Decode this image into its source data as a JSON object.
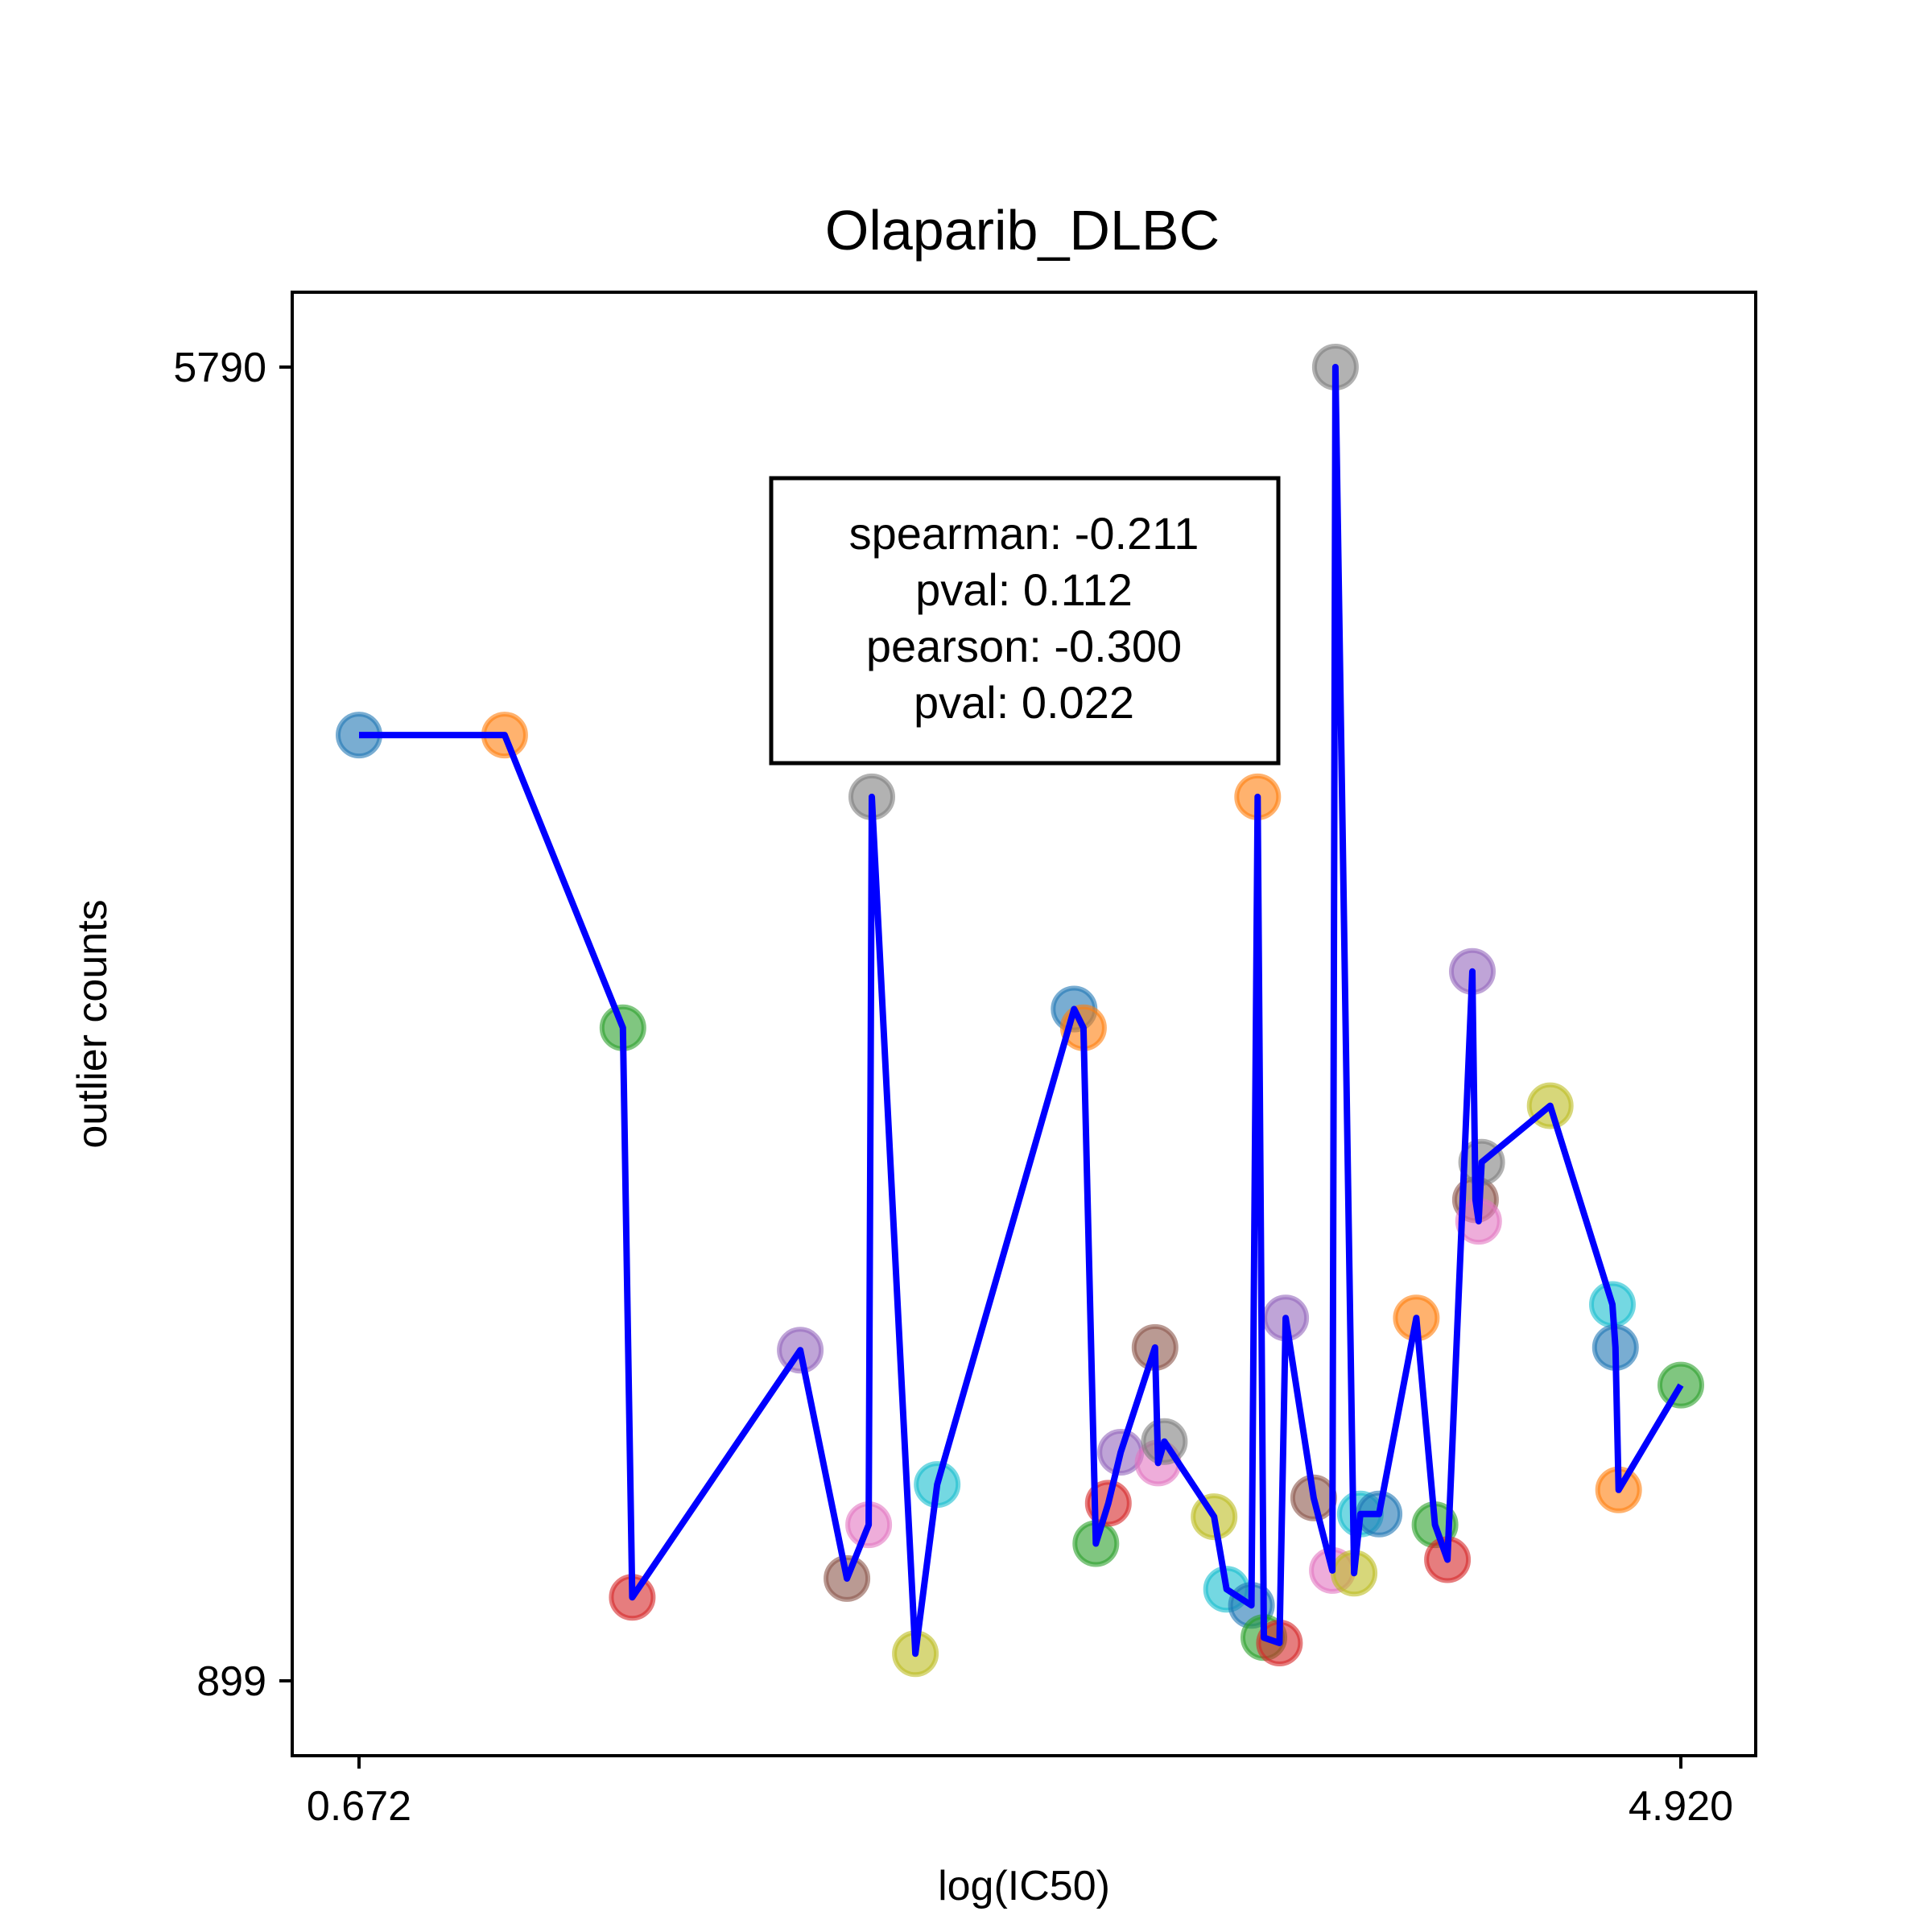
{
  "chart_data": {
    "type": "scatter",
    "title": "Olaparib_DLBC",
    "xlabel": "log(IC50)",
    "ylabel": "outlier counts",
    "x_ticks": [
      "0.672",
      "4.920"
    ],
    "y_ticks": [
      "5790",
      "899"
    ],
    "xlim": [
      0.672,
      4.92
    ],
    "ylim": [
      899,
      5790
    ],
    "grid": false,
    "stats_box": {
      "lines": [
        "spearman: -0.211",
        "pval: 0.112",
        "pearson: -0.300",
        "pval: 0.022"
      ]
    },
    "line_color": "#0000ff",
    "palette": [
      "#1f77b4",
      "#ff7f0e",
      "#2ca02c",
      "#d62728",
      "#9467bd",
      "#8c564b",
      "#e377c2",
      "#7f7f7f",
      "#bcbd22",
      "#17becf"
    ],
    "series": [
      {
        "x": [
          0.672,
          1.14,
          1.52,
          1.55,
          2.09,
          2.24,
          2.31,
          2.32,
          2.46,
          2.53,
          2.97,
          3.0,
          3.04,
          3.08,
          3.12,
          3.23,
          3.24,
          3.26,
          3.42,
          3.46,
          3.54,
          3.56,
          3.58,
          3.63,
          3.65,
          3.74,
          3.8,
          3.81,
          3.87,
          3.89,
          3.95,
          4.07,
          4.13,
          4.17,
          4.25,
          4.26,
          4.27,
          4.28,
          4.5,
          4.7,
          4.71,
          4.72,
          4.92
        ],
        "y": [
          4420,
          4420,
          3330,
          1210,
          2130,
          1280,
          1480,
          4190,
          1000,
          1630,
          3400,
          3330,
          1410,
          1560,
          1750,
          2140,
          1710,
          1790,
          1510,
          1240,
          1180,
          4190,
          1060,
          1040,
          2250,
          1580,
          1310,
          5790,
          1300,
          1520,
          1520,
          2250,
          1480,
          1350,
          3540,
          2690,
          2610,
          2830,
          3040,
          2300,
          2140,
          1610,
          2000
        ]
      }
    ]
  }
}
